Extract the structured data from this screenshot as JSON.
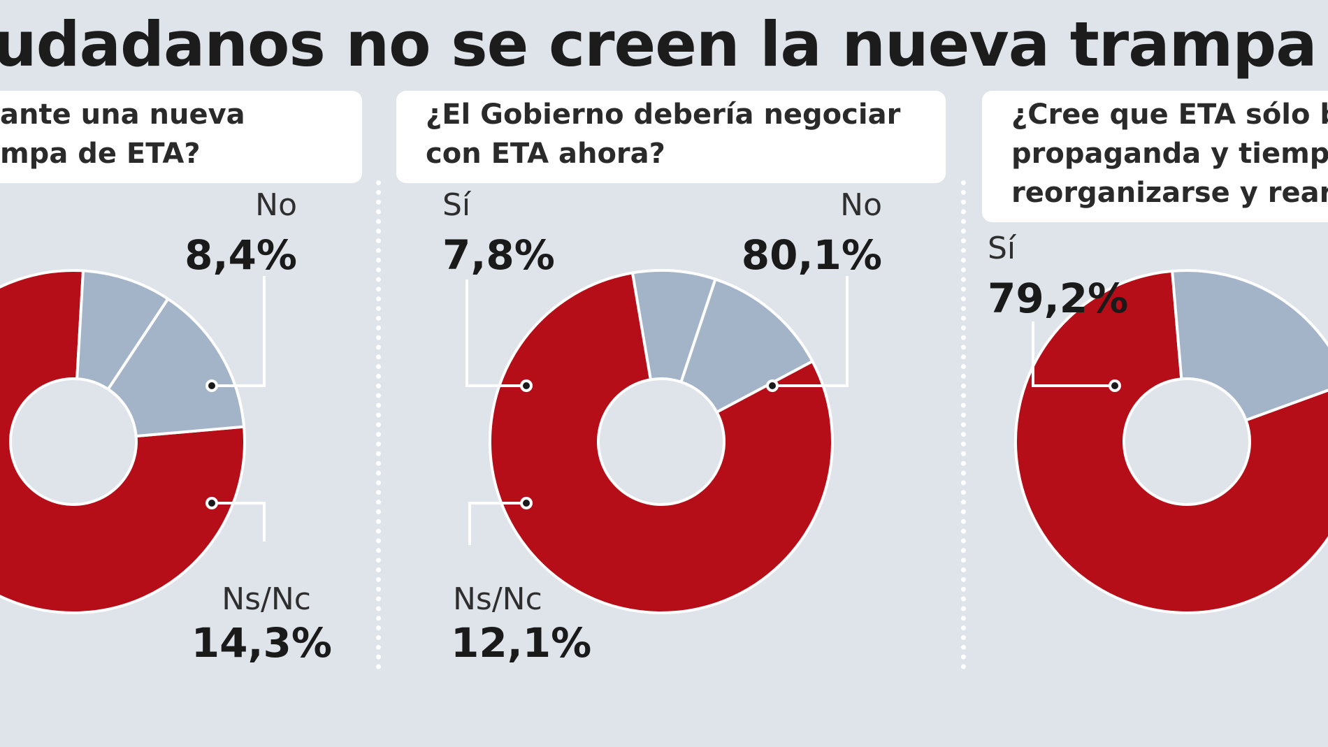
{
  "headline": "udadanos no se creen la nueva trampa",
  "colors": {
    "primary": "#b60e18",
    "secondary": "#a4b4c8",
    "background": "#dfe3ea",
    "leader": "#ffffff"
  },
  "chart_data": [
    {
      "type": "pie",
      "question_lines": [
        "ante una nueva",
        "mpa de ETA?"
      ],
      "slices": [
        {
          "label": "",
          "value": 77.3,
          "value_text": ""
        },
        {
          "label": "No",
          "value": 8.4,
          "value_text": "8,4%"
        },
        {
          "label": "Ns/Nc",
          "value": 14.3,
          "value_text": "14,3%"
        }
      ]
    },
    {
      "type": "pie",
      "question_lines": [
        "¿El Gobierno debería negociar",
        "con ETA ahora?"
      ],
      "slices": [
        {
          "label": "No",
          "value": 80.1,
          "value_text": "80,1%"
        },
        {
          "label": "Sí",
          "value": 7.8,
          "value_text": "7,8%"
        },
        {
          "label": "Ns/Nc",
          "value": 12.1,
          "value_text": "12,1%"
        }
      ]
    },
    {
      "type": "pie",
      "question_lines": [
        "¿Cree que ETA sólo b",
        "propaganda y tiempo",
        "reorganizarse y rearr"
      ],
      "slices": [
        {
          "label": "Sí",
          "value": 79.2,
          "value_text": "79,2%"
        },
        {
          "label": "",
          "value": 20.8,
          "value_text": ""
        }
      ]
    }
  ]
}
